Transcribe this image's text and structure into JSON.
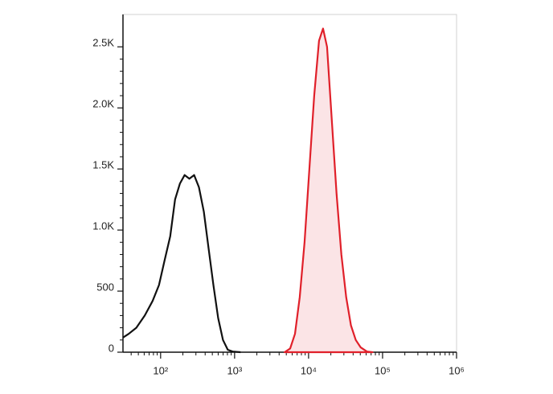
{
  "chart_data": {
    "type": "histogram-overlay",
    "xscale": "log",
    "xlim": [
      31,
      1000000
    ],
    "xticks": [
      {
        "value": 100,
        "label": "10²"
      },
      {
        "value": 1000,
        "label": "10³"
      },
      {
        "value": 10000,
        "label": "10⁴"
      },
      {
        "value": 100000,
        "label": "10⁵"
      },
      {
        "value": 1000000,
        "label": "10⁶"
      }
    ],
    "ylim": [
      0,
      2765
    ],
    "yticks": [
      0,
      500,
      {
        "value": 1000,
        "label": "1.0K"
      },
      {
        "value": 1500,
        "label": "1.5K"
      },
      {
        "value": 2000,
        "label": "2.0K"
      },
      {
        "value": 2500,
        "label": "2.5K"
      }
    ],
    "series": [
      {
        "color": "#111111",
        "fill": null,
        "x": [
          31,
          37,
          47,
          61,
          78,
          95,
          113,
          135,
          157,
          182,
          211,
          245,
          284,
          330,
          384,
          445,
          517,
          600,
          697,
          809,
          940,
          1205
        ],
        "values": [
          120,
          150,
          200,
          300,
          420,
          550,
          750,
          950,
          1250,
          1380,
          1450,
          1420,
          1450,
          1350,
          1150,
          850,
          550,
          280,
          100,
          20,
          5,
          0
        ]
      },
      {
        "color": "#e0202a",
        "fill": "#fbe4e6",
        "x": [
          4740,
          5640,
          6550,
          7600,
          8830,
          10250,
          11900,
          13840,
          15670,
          17760,
          20620,
          23900,
          27730,
          32210,
          37410,
          43450,
          50470,
          61520,
          73280
        ],
        "values": [
          0,
          30,
          150,
          450,
          900,
          1500,
          2100,
          2550,
          2650,
          2500,
          1900,
          1300,
          800,
          450,
          220,
          100,
          40,
          5,
          0
        ]
      }
    ]
  }
}
